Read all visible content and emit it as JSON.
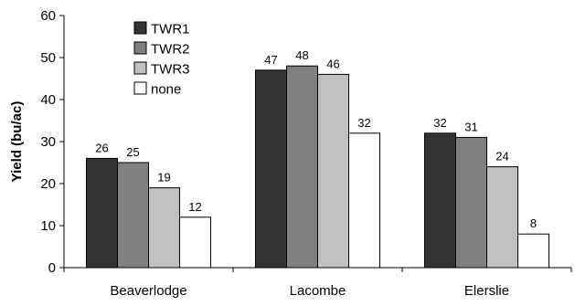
{
  "chart_data": {
    "type": "bar",
    "title": "",
    "xlabel": "",
    "ylabel": "Yield (bu/ac)",
    "ylim": [
      0,
      60
    ],
    "yticks": [
      0,
      10,
      20,
      30,
      40,
      50,
      60
    ],
    "grid": false,
    "legend_position": "top-left",
    "categories": [
      "Beaverlodge",
      "Lacombe",
      "Elerslie"
    ],
    "series": [
      {
        "name": "TWR1",
        "color": "#333333",
        "values": [
          26,
          47,
          32
        ]
      },
      {
        "name": "TWR2",
        "color": "#808080",
        "values": [
          25,
          48,
          31
        ]
      },
      {
        "name": "TWR3",
        "color": "#c0c0c0",
        "values": [
          19,
          46,
          24
        ]
      },
      {
        "name": "none",
        "color": "#ffffff",
        "values": [
          12,
          32,
          8
        ]
      }
    ],
    "data_labels": [
      [
        "26",
        "47",
        "32"
      ],
      [
        "25",
        "48",
        "31"
      ],
      [
        "19",
        "46",
        "24"
      ],
      [
        "12",
        "32",
        "8"
      ]
    ]
  }
}
